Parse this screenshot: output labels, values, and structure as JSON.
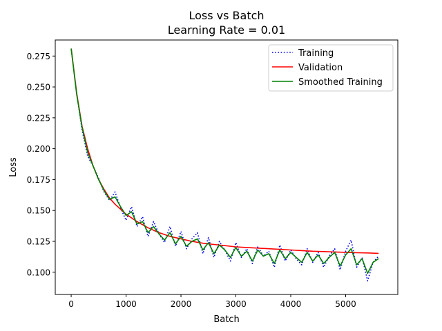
{
  "chart_data": {
    "type": "line",
    "title": "Loss vs Batch",
    "subtitle": "Learning Rate = 0.01",
    "xlabel": "Batch",
    "ylabel": "Loss",
    "xlim": [
      -290,
      5950
    ],
    "ylim": [
      0.082,
      0.288
    ],
    "x_ticks": [
      0,
      1000,
      2000,
      3000,
      4000,
      5000
    ],
    "x_tick_labels": [
      "0",
      "1000",
      "2000",
      "3000",
      "4000",
      "5000"
    ],
    "y_ticks": [
      0.1,
      0.125,
      0.15,
      0.175,
      0.2,
      0.225,
      0.25,
      0.275
    ],
    "y_tick_labels": [
      "0.100",
      "0.125",
      "0.150",
      "0.175",
      "0.200",
      "0.225",
      "0.250",
      "0.275"
    ],
    "grid": false,
    "legend_position": "top-right",
    "series": [
      {
        "name": "Training",
        "color": "#0000ff",
        "style": "dotted",
        "x": [
          0,
          100,
          200,
          300,
          400,
          500,
          600,
          700,
          800,
          900,
          1000,
          1100,
          1200,
          1300,
          1400,
          1500,
          1600,
          1700,
          1800,
          1900,
          2000,
          2100,
          2200,
          2300,
          2400,
          2500,
          2600,
          2700,
          2800,
          2900,
          3000,
          3100,
          3200,
          3300,
          3400,
          3500,
          3600,
          3700,
          3800,
          3900,
          4000,
          4100,
          4200,
          4300,
          4400,
          4500,
          4600,
          4700,
          4800,
          4900,
          5000,
          5100,
          5200,
          5300,
          5400,
          5500,
          5600
        ],
        "values": [
          0.281,
          0.245,
          0.215,
          0.194,
          0.186,
          0.176,
          0.165,
          0.158,
          0.165,
          0.152,
          0.142,
          0.153,
          0.137,
          0.145,
          0.129,
          0.141,
          0.131,
          0.124,
          0.137,
          0.121,
          0.133,
          0.119,
          0.127,
          0.132,
          0.115,
          0.128,
          0.112,
          0.125,
          0.118,
          0.109,
          0.124,
          0.112,
          0.119,
          0.107,
          0.121,
          0.113,
          0.117,
          0.104,
          0.122,
          0.109,
          0.118,
          0.111,
          0.106,
          0.119,
          0.108,
          0.116,
          0.104,
          0.113,
          0.119,
          0.102,
          0.117,
          0.126,
          0.104,
          0.112,
          0.093,
          0.108,
          0.113
        ]
      },
      {
        "name": "Validation",
        "color": "#ff0000",
        "style": "solid",
        "x": [
          0,
          100,
          200,
          300,
          400,
          500,
          600,
          700,
          800,
          900,
          1000,
          1200,
          1400,
          1600,
          1800,
          2000,
          2200,
          2400,
          2600,
          2800,
          3000,
          3200,
          3400,
          3600,
          3800,
          4000,
          4200,
          4400,
          4600,
          4800,
          5000,
          5200,
          5400,
          5600
        ],
        "values": [
          0.281,
          0.245,
          0.218,
          0.2,
          0.186,
          0.175,
          0.167,
          0.16,
          0.155,
          0.151,
          0.147,
          0.141,
          0.136,
          0.132,
          0.129,
          0.127,
          0.125,
          0.1235,
          0.1225,
          0.1215,
          0.1205,
          0.12,
          0.1195,
          0.119,
          0.1185,
          0.118,
          0.1175,
          0.117,
          0.1167,
          0.1164,
          0.1161,
          0.1158,
          0.1156,
          0.1153
        ]
      },
      {
        "name": "Smoothed Training",
        "color": "#008000",
        "style": "solid",
        "x": [
          0,
          100,
          200,
          300,
          400,
          500,
          600,
          700,
          800,
          900,
          1000,
          1100,
          1200,
          1300,
          1400,
          1500,
          1600,
          1700,
          1800,
          1900,
          2000,
          2100,
          2200,
          2300,
          2400,
          2500,
          2600,
          2700,
          2800,
          2900,
          3000,
          3100,
          3200,
          3300,
          3400,
          3500,
          3600,
          3700,
          3800,
          3900,
          4000,
          4100,
          4200,
          4300,
          4400,
          4500,
          4600,
          4700,
          4800,
          4900,
          5000,
          5100,
          5200,
          5300,
          5400,
          5500,
          5600
        ],
        "values": [
          0.281,
          0.244,
          0.217,
          0.197,
          0.186,
          0.175,
          0.166,
          0.159,
          0.161,
          0.153,
          0.146,
          0.149,
          0.139,
          0.141,
          0.132,
          0.137,
          0.131,
          0.126,
          0.132,
          0.123,
          0.129,
          0.121,
          0.125,
          0.127,
          0.118,
          0.124,
          0.115,
          0.122,
          0.118,
          0.112,
          0.12,
          0.113,
          0.117,
          0.109,
          0.118,
          0.113,
          0.115,
          0.107,
          0.118,
          0.111,
          0.116,
          0.112,
          0.108,
          0.116,
          0.109,
          0.114,
          0.107,
          0.112,
          0.116,
          0.105,
          0.114,
          0.119,
          0.106,
          0.111,
          0.099,
          0.108,
          0.111
        ]
      }
    ]
  }
}
